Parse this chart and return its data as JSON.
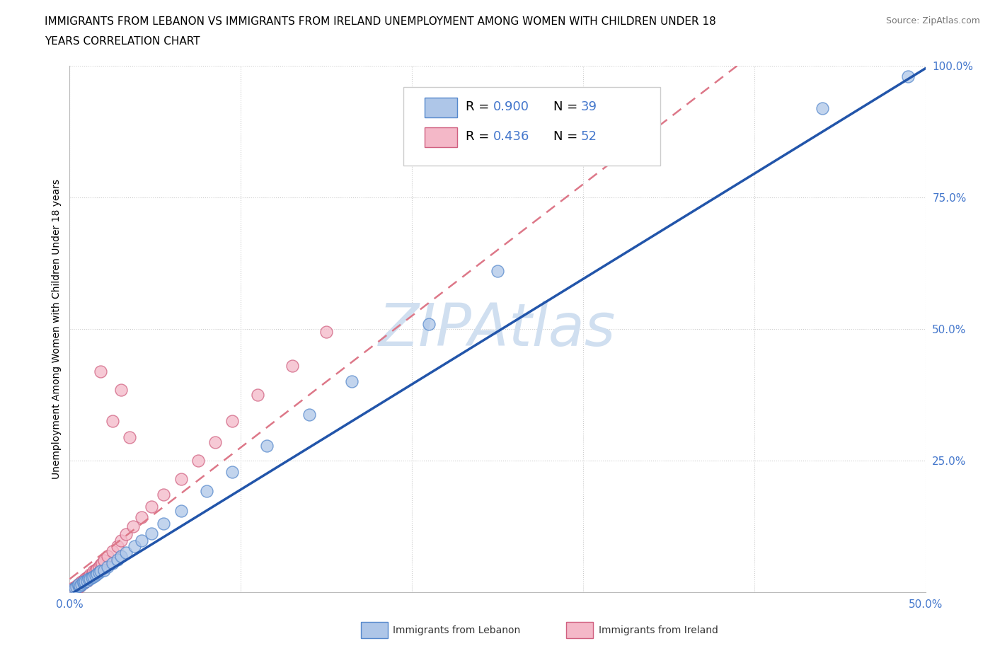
{
  "title_line1": "IMMIGRANTS FROM LEBANON VS IMMIGRANTS FROM IRELAND UNEMPLOYMENT AMONG WOMEN WITH CHILDREN UNDER 18",
  "title_line2": "YEARS CORRELATION CHART",
  "source": "Source: ZipAtlas.com",
  "ylabel": "Unemployment Among Women with Children Under 18 years",
  "xlim": [
    0,
    0.5
  ],
  "ylim": [
    0,
    1.0
  ],
  "lebanon_color": "#aec6e8",
  "ireland_color": "#f4b8c8",
  "lebanon_edge": "#5588cc",
  "ireland_edge": "#d06080",
  "reg_lebanon_color": "#2255aa",
  "reg_ireland_color": "#dd7788",
  "watermark": "ZIPAtlas",
  "watermark_color": "#d0dff0",
  "legend_R_lebanon": "R = 0.900",
  "legend_N_lebanon": "N = 39",
  "legend_R_ireland": "R = 0.436",
  "legend_N_ireland": "N = 52",
  "legend_value_color": "#4477cc",
  "background_color": "#ffffff",
  "grid_color": "#cccccc",
  "lebanon_x": [
    0.002,
    0.003,
    0.004,
    0.005,
    0.005,
    0.006,
    0.007,
    0.008,
    0.008,
    0.009,
    0.01,
    0.011,
    0.012,
    0.013,
    0.014,
    0.015,
    0.016,
    0.017,
    0.018,
    0.02,
    0.022,
    0.025,
    0.028,
    0.03,
    0.033,
    0.038,
    0.042,
    0.048,
    0.055,
    0.065,
    0.08,
    0.095,
    0.115,
    0.14,
    0.165,
    0.21,
    0.25,
    0.44,
    0.49
  ],
  "lebanon_y": [
    0.005,
    0.008,
    0.01,
    0.012,
    0.015,
    0.012,
    0.015,
    0.018,
    0.02,
    0.02,
    0.022,
    0.025,
    0.025,
    0.028,
    0.03,
    0.032,
    0.035,
    0.038,
    0.04,
    0.042,
    0.048,
    0.055,
    0.062,
    0.068,
    0.075,
    0.088,
    0.098,
    0.112,
    0.13,
    0.155,
    0.192,
    0.228,
    0.278,
    0.338,
    0.4,
    0.51,
    0.61,
    0.92,
    0.98
  ],
  "ireland_x": [
    0.001,
    0.002,
    0.002,
    0.003,
    0.003,
    0.004,
    0.004,
    0.005,
    0.005,
    0.006,
    0.006,
    0.007,
    0.007,
    0.008,
    0.008,
    0.009,
    0.009,
    0.01,
    0.01,
    0.011,
    0.011,
    0.012,
    0.012,
    0.013,
    0.014,
    0.014,
    0.015,
    0.016,
    0.017,
    0.018,
    0.019,
    0.02,
    0.022,
    0.025,
    0.028,
    0.03,
    0.033,
    0.037,
    0.042,
    0.048,
    0.055,
    0.065,
    0.075,
    0.085,
    0.095,
    0.11,
    0.13,
    0.15,
    0.03,
    0.018,
    0.025,
    0.035
  ],
  "ireland_y": [
    0.003,
    0.005,
    0.008,
    0.005,
    0.01,
    0.008,
    0.012,
    0.01,
    0.015,
    0.012,
    0.018,
    0.015,
    0.02,
    0.018,
    0.022,
    0.02,
    0.025,
    0.022,
    0.028,
    0.025,
    0.03,
    0.028,
    0.033,
    0.035,
    0.038,
    0.04,
    0.042,
    0.045,
    0.048,
    0.052,
    0.055,
    0.06,
    0.068,
    0.078,
    0.088,
    0.098,
    0.11,
    0.125,
    0.142,
    0.162,
    0.185,
    0.215,
    0.25,
    0.285,
    0.325,
    0.375,
    0.43,
    0.495,
    0.385,
    0.42,
    0.325,
    0.295
  ]
}
